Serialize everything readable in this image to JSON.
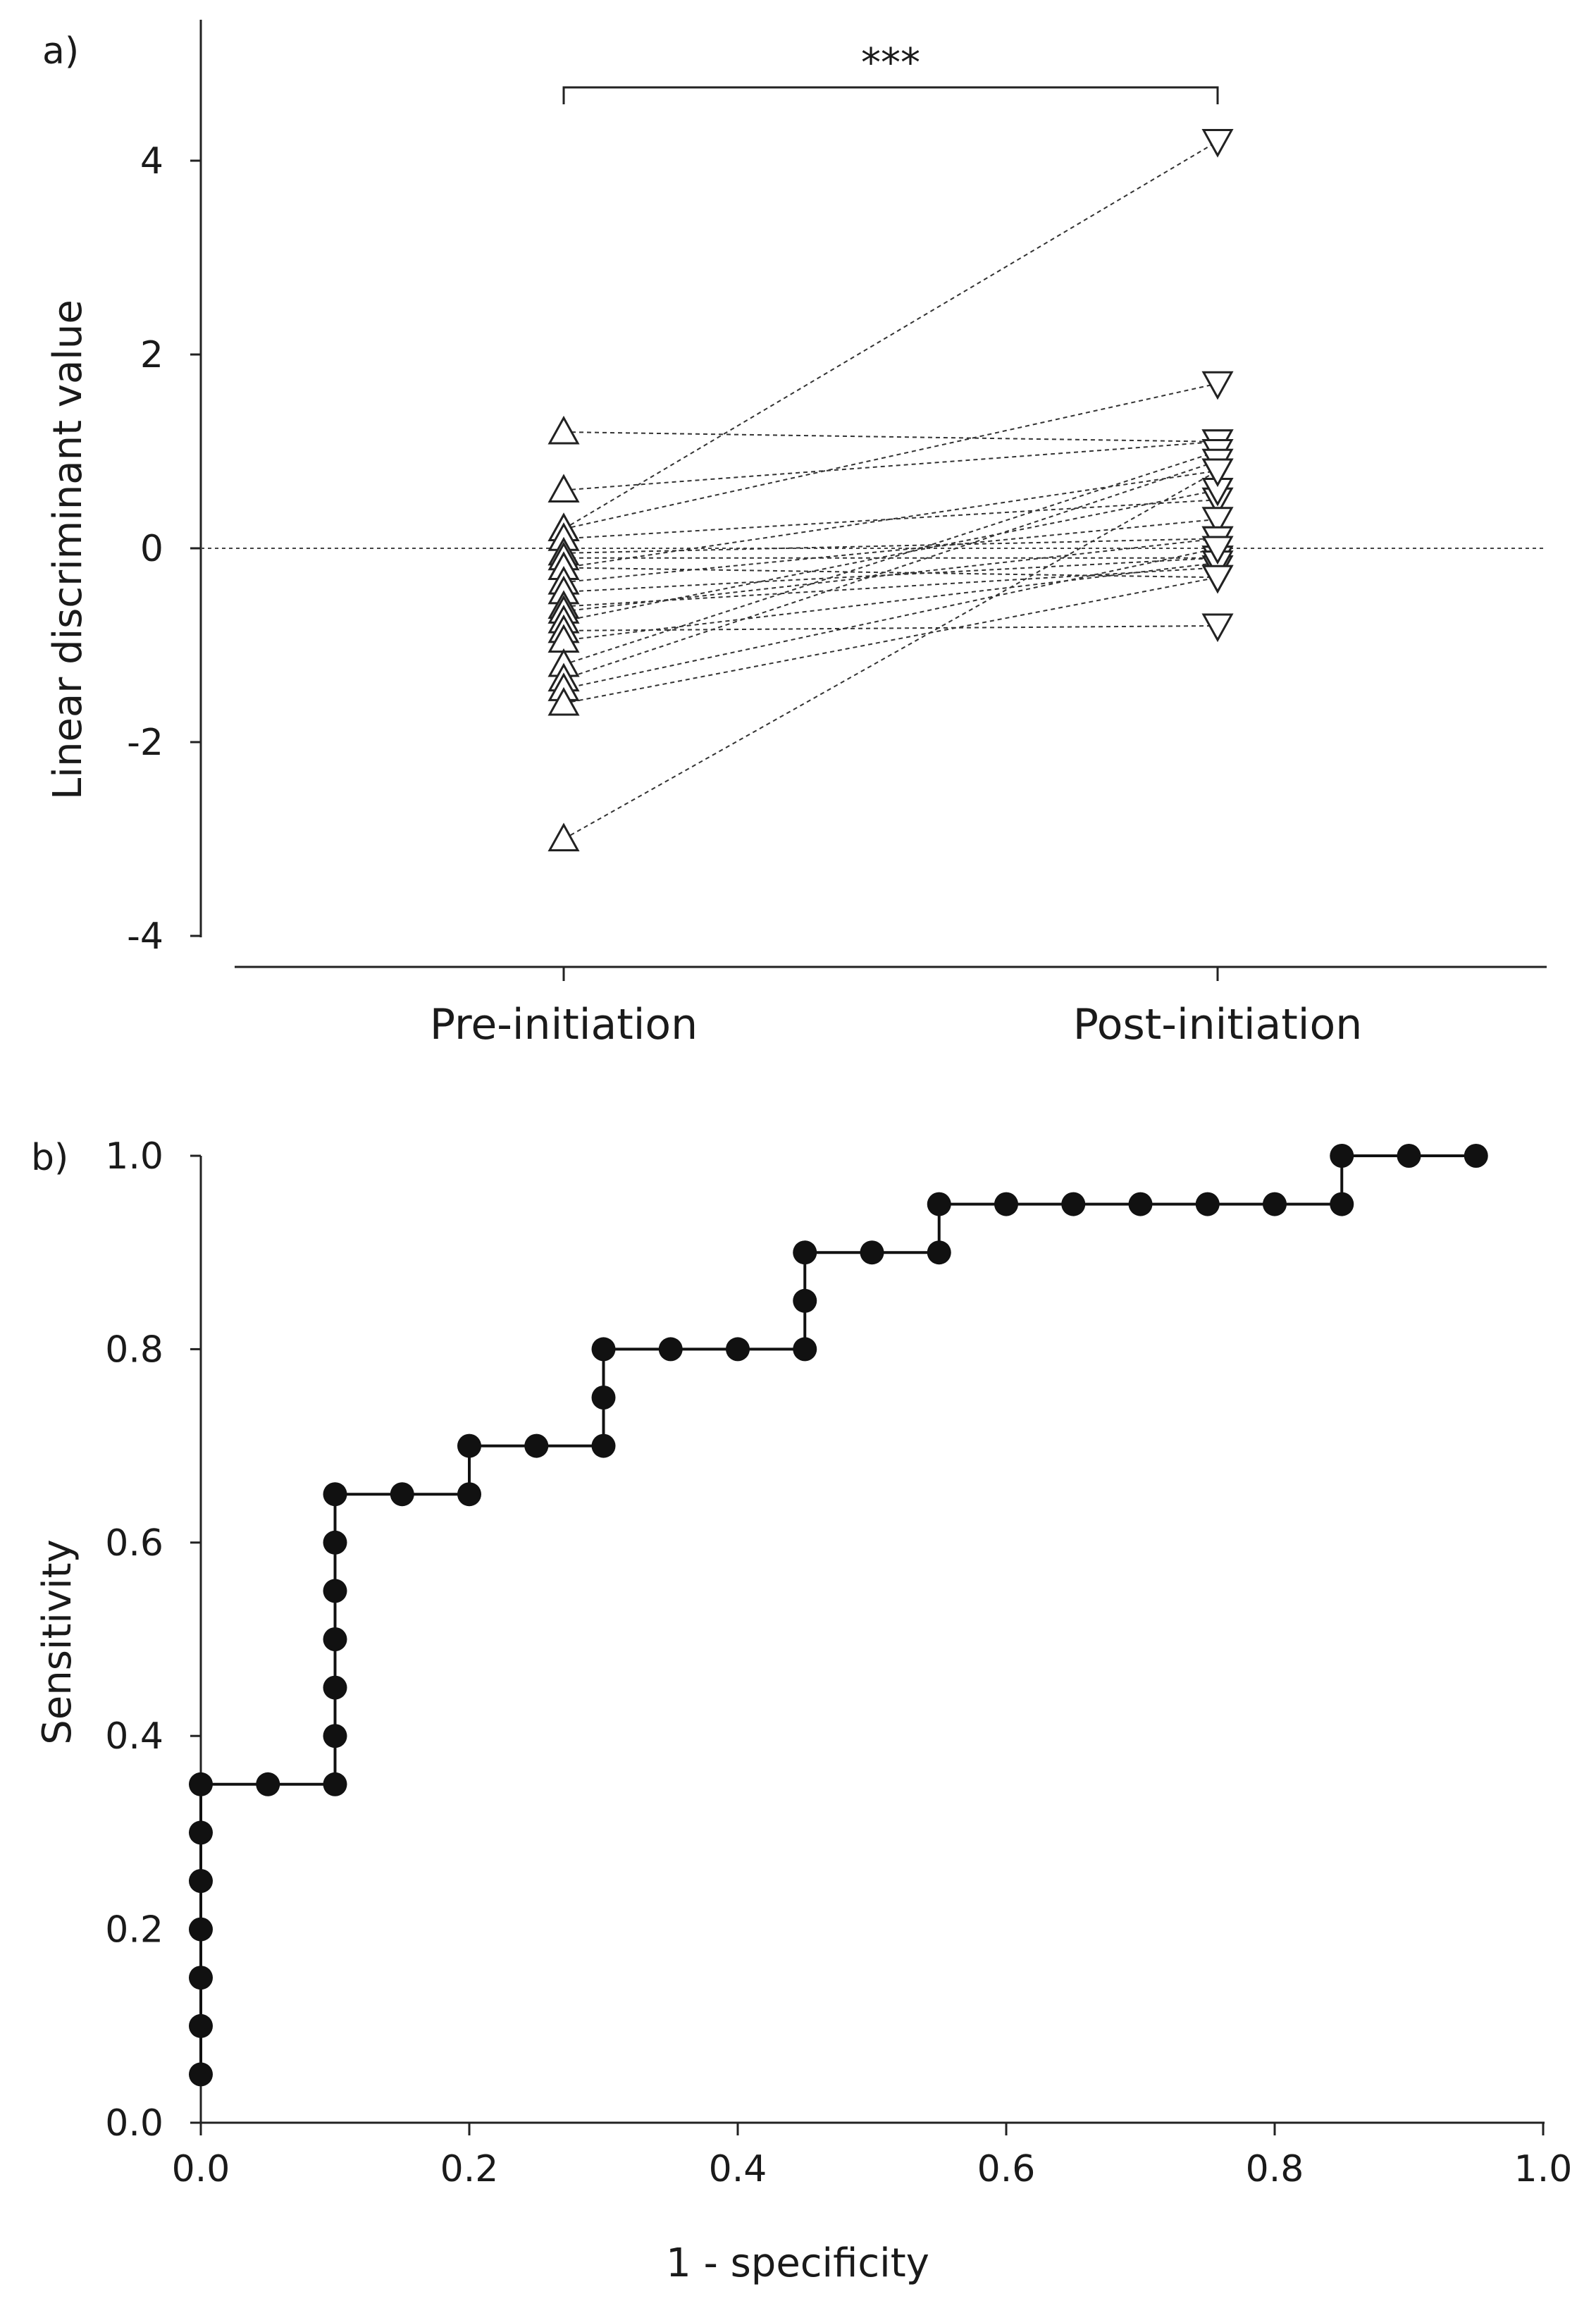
{
  "panels": {
    "a": {
      "label": "a)"
    },
    "b": {
      "label": "b)"
    }
  },
  "chart_data": [
    {
      "panel": "a",
      "type": "line",
      "title": "",
      "xlabel": "",
      "ylabel": "Linear discriminant value",
      "categories": [
        "Pre-initiation",
        "Post-initiation"
      ],
      "ylim": [
        -4,
        5
      ],
      "yticks": [
        4,
        2,
        0,
        -2,
        -4
      ],
      "ytick_labels": [
        "4",
        "2",
        "0",
        "-2",
        "-4"
      ],
      "reference_line_y": 0,
      "significance": "***",
      "markers": {
        "pre": "up-triangle",
        "post": "down-triangle"
      },
      "grid": false,
      "paired_values": [
        [
          1.2,
          1.1
        ],
        [
          0.6,
          1.1
        ],
        [
          0.2,
          4.2
        ],
        [
          0.2,
          1.7
        ],
        [
          0.1,
          0.5
        ],
        [
          -0.05,
          0.1
        ],
        [
          -0.1,
          -0.1
        ],
        [
          -0.2,
          0.8
        ],
        [
          -0.2,
          -0.3
        ],
        [
          -0.35,
          0.3
        ],
        [
          -0.45,
          -0.1
        ],
        [
          -0.6,
          -0.2
        ],
        [
          -0.65,
          0.1
        ],
        [
          -0.75,
          0.6
        ],
        [
          -0.85,
          -0.8
        ],
        [
          -0.95,
          -0.15
        ],
        [
          -1.2,
          1.0
        ],
        [
          -1.35,
          0.9
        ],
        [
          -1.45,
          0.0
        ],
        [
          -1.6,
          -0.3
        ],
        [
          -3.0,
          0.8
        ]
      ]
    },
    {
      "panel": "b",
      "type": "line",
      "title": "",
      "xlabel": "1 - specificity",
      "ylabel": "Sensitivity",
      "xlim": [
        0,
        1
      ],
      "ylim": [
        0,
        1
      ],
      "xticks": [
        0.0,
        0.2,
        0.4,
        0.6,
        0.8,
        1.0
      ],
      "xtick_labels": [
        "0.0",
        "0.2",
        "0.4",
        "0.6",
        "0.8",
        "1.0"
      ],
      "yticks": [
        0.0,
        0.2,
        0.4,
        0.6,
        0.8,
        1.0
      ],
      "ytick_labels": [
        "0.0",
        "0.2",
        "0.4",
        "0.6",
        "0.8",
        "1.0"
      ],
      "grid": false,
      "x": [
        0,
        0,
        0,
        0,
        0,
        0,
        0,
        0.05,
        0.1,
        0.1,
        0.1,
        0.1,
        0.1,
        0.1,
        0.1,
        0.15,
        0.2,
        0.2,
        0.25,
        0.3,
        0.3,
        0.3,
        0.35,
        0.4,
        0.45,
        0.45,
        0.45,
        0.5,
        0.55,
        0.55,
        0.6,
        0.65,
        0.7,
        0.75,
        0.8,
        0.85,
        0.85,
        0.9,
        0.95
      ],
      "y": [
        0.05,
        0.1,
        0.15,
        0.2,
        0.25,
        0.3,
        0.35,
        0.35,
        0.35,
        0.4,
        0.45,
        0.5,
        0.55,
        0.6,
        0.65,
        0.65,
        0.65,
        0.7,
        0.7,
        0.7,
        0.75,
        0.8,
        0.8,
        0.8,
        0.8,
        0.85,
        0.9,
        0.9,
        0.9,
        0.95,
        0.95,
        0.95,
        0.95,
        0.95,
        0.95,
        0.95,
        1.0,
        1.0,
        1.0
      ]
    }
  ]
}
